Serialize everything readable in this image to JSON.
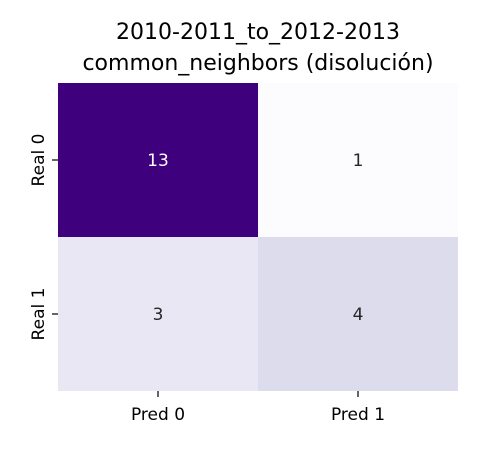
{
  "chart_data": {
    "type": "heatmap",
    "title": [
      "2010-2011_to_2012-2013",
      "common_neighbors (disolución)"
    ],
    "xlabel": "",
    "ylabel": "",
    "x_categories": [
      "Pred 0",
      "Pred 1"
    ],
    "y_categories": [
      "Real 0",
      "Real 1"
    ],
    "values": [
      [
        13,
        1
      ],
      [
        3,
        4
      ]
    ],
    "colormap": "Purples",
    "colorbar": false,
    "cell_colors": [
      [
        "#3f007d",
        "#fcfbfd"
      ],
      [
        "#e9e7f3",
        "#dcdcec"
      ]
    ],
    "annotation_colors": [
      [
        "#ffffff",
        "#262626"
      ],
      [
        "#262626",
        "#262626"
      ]
    ]
  }
}
